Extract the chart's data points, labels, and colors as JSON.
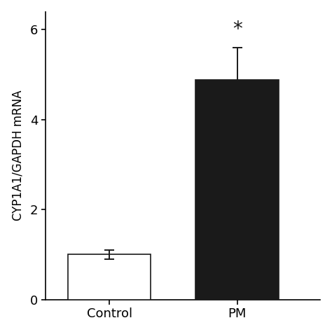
{
  "categories": [
    "Control",
    "PM"
  ],
  "values": [
    1.0,
    4.88
  ],
  "errors": [
    0.1,
    0.72
  ],
  "bar_colors": [
    "#ffffff",
    "#1a1a1a"
  ],
  "bar_edge_colors": [
    "#1a1a1a",
    "#1a1a1a"
  ],
  "bar_edge_width": 1.2,
  "ylabel": "CYP1A1/GAPDH mRNA",
  "ylim": [
    0,
    6.4
  ],
  "yticks": [
    0,
    2,
    4,
    6
  ],
  "bar_width": 0.65,
  "bar_positions": [
    1,
    2
  ],
  "significance_label": "*",
  "significance_fontsize": 20,
  "xlabel_fontsize": 13,
  "ylabel_fontsize": 12,
  "tick_fontsize": 13,
  "error_capsize": 5,
  "error_linewidth": 1.4,
  "error_color": "#1a1a1a",
  "background_color": "#ffffff",
  "xlim": [
    0.5,
    2.65
  ]
}
